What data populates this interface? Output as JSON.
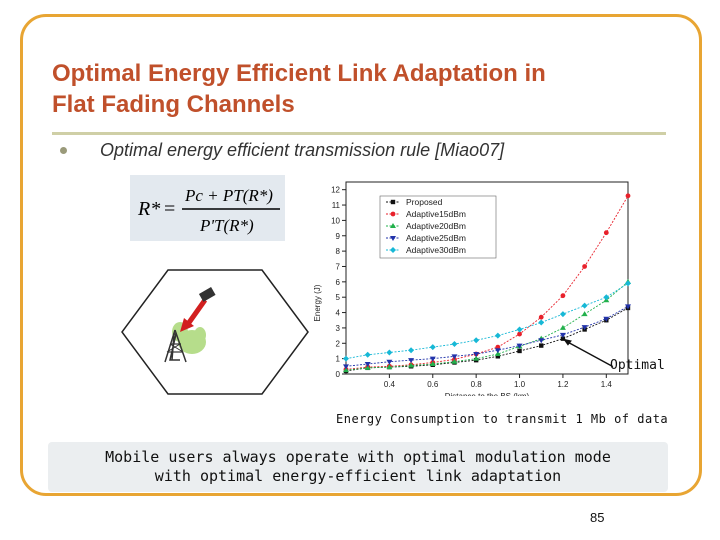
{
  "slide": {
    "title_line1": "Optimal Energy Efficient Link Adaptation in",
    "title_line2": "Flat Fading Channels",
    "bullet": "Optimal energy efficient transmission rule [Miao07]",
    "formula": {
      "lhs": "R*",
      "num": "Pc + PT(R*)",
      "den": "P'T(R*)"
    },
    "caption": "Energy Consumption to transmit 1 Mb of data",
    "note_line1": "Mobile users always operate with optimal modulation mode",
    "note_line2": "with optimal energy-efficient link adaptation",
    "page_number": "85",
    "annotation": "Optimal"
  },
  "colors": {
    "title": "#c0502b",
    "frame": "#e8a533"
  },
  "chart_data": {
    "type": "line",
    "xlabel": "Distance to the BS (km)",
    "ylabel": "Energy (J)",
    "xlim": [
      0.2,
      1.5
    ],
    "ylim": [
      0,
      12.5
    ],
    "x_ticks": [
      0.4,
      0.6,
      0.8,
      1.0,
      1.2,
      1.4
    ],
    "y_ticks": [
      0,
      1,
      2,
      3,
      4,
      5,
      6,
      7,
      8,
      9,
      10,
      11,
      12
    ],
    "legend_position": "top-left",
    "series": [
      {
        "name": "Proposed",
        "color": "#111111",
        "marker": "square",
        "x": [
          0.2,
          0.3,
          0.4,
          0.5,
          0.6,
          0.7,
          0.8,
          0.9,
          1.0,
          1.1,
          1.2,
          1.3,
          1.4,
          1.5
        ],
        "y": [
          0.2,
          0.4,
          0.45,
          0.5,
          0.6,
          0.75,
          0.9,
          1.15,
          1.5,
          1.85,
          2.3,
          2.9,
          3.5,
          4.3
        ]
      },
      {
        "name": "Adaptive15dBm",
        "color": "#e8212b",
        "marker": "circle",
        "x": [
          0.2,
          0.3,
          0.4,
          0.5,
          0.6,
          0.7,
          0.8,
          0.9,
          1.0,
          1.1,
          1.2,
          1.3,
          1.4,
          1.5
        ],
        "y": [
          0.3,
          0.45,
          0.5,
          0.6,
          0.75,
          0.95,
          1.3,
          1.75,
          2.6,
          3.7,
          5.1,
          7.0,
          9.2,
          11.6
        ]
      },
      {
        "name": "Adaptive20dBm",
        "color": "#22b14c",
        "marker": "triangle-up",
        "x": [
          0.2,
          0.3,
          0.4,
          0.5,
          0.6,
          0.7,
          0.8,
          0.9,
          1.0,
          1.1,
          1.2,
          1.3,
          1.4,
          1.5
        ],
        "y": [
          0.25,
          0.4,
          0.45,
          0.55,
          0.65,
          0.8,
          1.0,
          1.3,
          1.8,
          2.3,
          3.0,
          3.9,
          4.8,
          6.0
        ]
      },
      {
        "name": "Adaptive25dBm",
        "color": "#2233aa",
        "marker": "triangle-down",
        "x": [
          0.2,
          0.3,
          0.4,
          0.5,
          0.6,
          0.7,
          0.8,
          0.9,
          1.0,
          1.1,
          1.2,
          1.3,
          1.4,
          1.5
        ],
        "y": [
          0.5,
          0.65,
          0.8,
          0.9,
          1.0,
          1.15,
          1.3,
          1.55,
          1.85,
          2.2,
          2.55,
          3.05,
          3.6,
          4.4
        ]
      },
      {
        "name": "Adaptive30dBm",
        "color": "#17b8d6",
        "marker": "diamond",
        "x": [
          0.2,
          0.3,
          0.4,
          0.5,
          0.6,
          0.7,
          0.8,
          0.9,
          1.0,
          1.1,
          1.2,
          1.3,
          1.4,
          1.5
        ],
        "y": [
          1.0,
          1.25,
          1.4,
          1.55,
          1.75,
          1.95,
          2.2,
          2.5,
          2.9,
          3.35,
          3.9,
          4.45,
          5.0,
          5.9
        ]
      }
    ]
  }
}
